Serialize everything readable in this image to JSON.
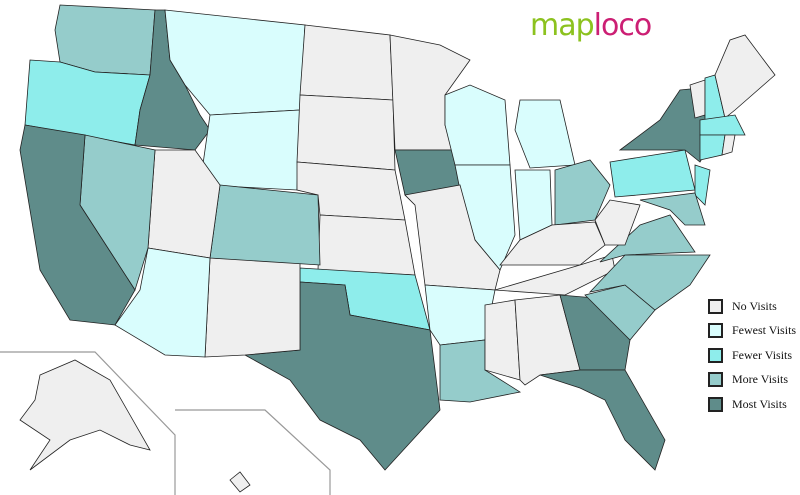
{
  "logo": {
    "part1": "map",
    "part2": "loco",
    "colors": {
      "map": "#8cc21f",
      "loco": "#cc1f74"
    }
  },
  "legend": [
    {
      "key": "none",
      "label": "No Visits",
      "color": "#efefef"
    },
    {
      "key": "fewest",
      "label": "Fewest Visits",
      "color": "#d9fdfd"
    },
    {
      "key": "fewer",
      "label": "Fewer Visits",
      "color": "#8eedeb"
    },
    {
      "key": "more",
      "label": "More Visits",
      "color": "#95cccb"
    },
    {
      "key": "most",
      "label": "Most Visits",
      "color": "#5f8c8a"
    }
  ],
  "states": {
    "WA": "more",
    "OR": "fewer",
    "ID": "most",
    "MT": "fewest",
    "WY": "fewest",
    "ND": "none",
    "SD": "none",
    "NE": "none",
    "KS": "none",
    "OK": "fewer",
    "TX": "most",
    "NM": "none",
    "CO": "more",
    "UT": "none",
    "AZ": "fewest",
    "NV": "more",
    "CA": "most",
    "MN": "none",
    "IA": "most",
    "WI": "fewest",
    "IL": "fewest",
    "IN": "fewest",
    "MI": "fewest",
    "OH": "more",
    "KY": "none",
    "TN": "none",
    "MO": "none",
    "AR": "fewest",
    "LA": "more",
    "MS": "none",
    "AL": "none",
    "GA": "most",
    "FL": "most",
    "SC": "more",
    "NC": "more",
    "VA": "more",
    "WV": "none",
    "PA": "fewer",
    "NY": "most",
    "NJ": "fewer",
    "MD": "more",
    "VT": "none",
    "NH": "fewer",
    "ME": "none",
    "MA": "fewer",
    "CT": "fewer",
    "RI": "none",
    "AK": "none",
    "HI": "none"
  }
}
